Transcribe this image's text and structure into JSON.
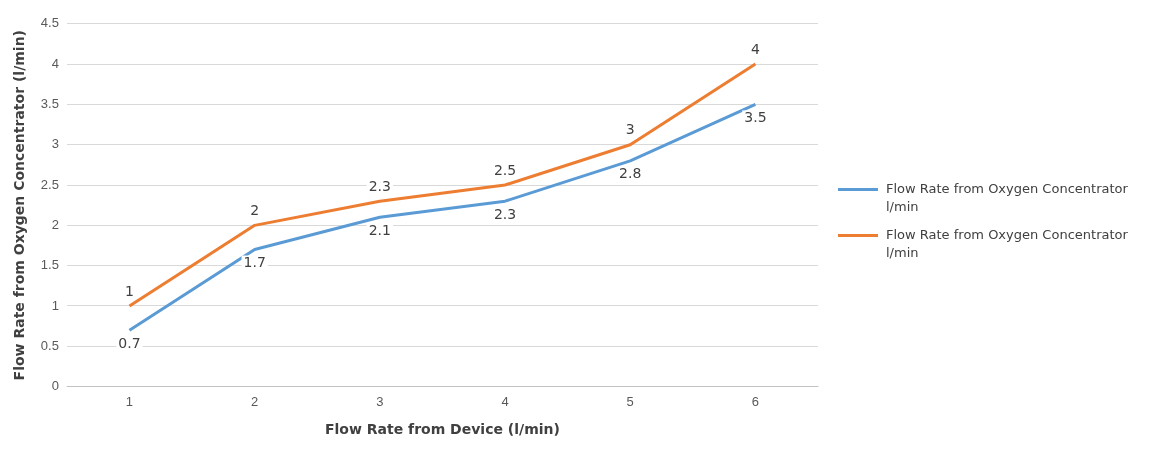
{
  "chart_data": {
    "type": "line",
    "xlabel": "Flow Rate from Device (l/min)",
    "ylabel": "Flow Rate from Oxygen Concentrator (l/min)",
    "categories": [
      "1",
      "2",
      "3",
      "4",
      "5",
      "6"
    ],
    "series": [
      {
        "name": "Flow Rate from Oxygen Concentrator l/min",
        "color": "#5b9bd5",
        "values": [
          0.7,
          1.7,
          2.1,
          2.3,
          2.8,
          3.5
        ]
      },
      {
        "name": "Flow Rate from Oxygen Concentrator l/min",
        "color": "#ed7d31",
        "values": [
          1,
          2,
          2.3,
          2.5,
          3,
          4
        ]
      }
    ],
    "ylim": [
      0,
      4.5
    ],
    "yticks": [
      0,
      0.5,
      1,
      1.5,
      2,
      2.5,
      3,
      3.5,
      4,
      4.5
    ],
    "grid": "y",
    "legend": "right",
    "marker": "none",
    "line_style": "solid",
    "data_labels": true
  }
}
